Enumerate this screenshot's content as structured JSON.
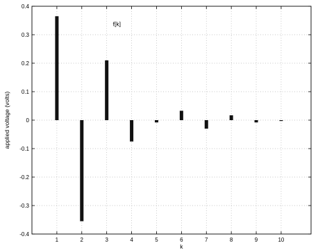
{
  "chart_data": {
    "type": "bar",
    "x": [
      1,
      2,
      3,
      4,
      5,
      6,
      7,
      8,
      9,
      10
    ],
    "values": [
      0.365,
      -0.355,
      0.21,
      -0.075,
      -0.008,
      0.033,
      -0.03,
      0.017,
      -0.008,
      -0.002
    ],
    "xlabel": "k",
    "ylabel": "applied voltage (volts)",
    "annotation": "f[k]",
    "xlim": [
      0,
      11.2
    ],
    "ylim": [
      -0.4,
      0.4
    ],
    "xticks": [
      "1",
      "2",
      "3",
      "4",
      "5",
      "6",
      "7",
      "8",
      "9",
      "10"
    ],
    "yticks": [
      "0.4",
      "0.3",
      "0.2",
      "0.1",
      "0",
      "-0.1",
      "-0.2",
      "-0.3",
      "-0.4"
    ],
    "grid": true,
    "bar_color": "#111111"
  }
}
